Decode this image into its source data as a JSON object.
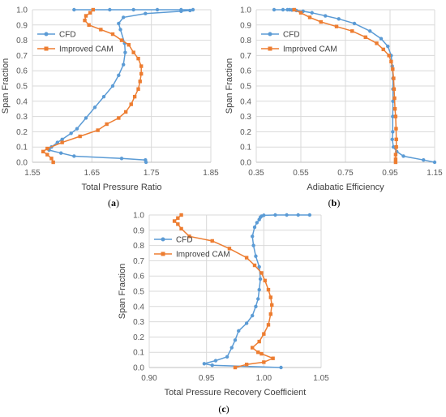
{
  "chart_data": [
    {
      "id": "a",
      "type": "line",
      "panel_label": "a",
      "xlabel": "Total Pressure Ratio",
      "ylabel": "Span Fraction",
      "xlim": [
        1.55,
        1.85
      ],
      "ylim": [
        0.0,
        1.0
      ],
      "x_ticks": [
        "1.55",
        "1.65",
        "1.75",
        "1.85"
      ],
      "y_ticks": [
        "0.0",
        "0.1",
        "0.2",
        "0.3",
        "0.4",
        "0.5",
        "0.6",
        "0.7",
        "0.8",
        "0.9",
        "1.0"
      ],
      "legend_position": "left",
      "grid": true,
      "series": [
        {
          "name": "CFD",
          "color": "#5b9bd5",
          "marker": "circle",
          "points": [
            [
              1.741,
              0.0
            ],
            [
              1.74,
              0.015
            ],
            [
              1.7,
              0.025
            ],
            [
              1.62,
              0.04
            ],
            [
              1.598,
              0.06
            ],
            [
              1.578,
              0.08
            ],
            [
              1.582,
              0.1
            ],
            [
              1.592,
              0.13
            ],
            [
              1.6,
              0.15
            ],
            [
              1.615,
              0.19
            ],
            [
              1.625,
              0.22
            ],
            [
              1.64,
              0.29
            ],
            [
              1.655,
              0.36
            ],
            [
              1.67,
              0.43
            ],
            [
              1.685,
              0.5
            ],
            [
              1.695,
              0.57
            ],
            [
              1.703,
              0.64
            ],
            [
              1.706,
              0.72
            ],
            [
              1.705,
              0.78
            ],
            [
              1.698,
              0.87
            ],
            [
              1.695,
              0.91
            ],
            [
              1.703,
              0.95
            ],
            [
              1.74,
              0.975
            ],
            [
              1.8,
              0.99
            ],
            [
              1.815,
              0.995
            ],
            [
              1.82,
              1.0
            ],
            [
              1.8,
              1.0
            ],
            [
              1.76,
              1.0
            ],
            [
              1.72,
              1.0
            ],
            [
              1.68,
              1.0
            ],
            [
              1.62,
              1.0
            ]
          ]
        },
        {
          "name": "Improved CAM",
          "color": "#ed7d31",
          "marker": "square",
          "points": [
            [
              1.585,
              0.0
            ],
            [
              1.582,
              0.025
            ],
            [
              1.575,
              0.05
            ],
            [
              1.568,
              0.07
            ],
            [
              1.575,
              0.09
            ],
            [
              1.6,
              0.13
            ],
            [
              1.63,
              0.17
            ],
            [
              1.66,
              0.21
            ],
            [
              1.675,
              0.25
            ],
            [
              1.695,
              0.29
            ],
            [
              1.707,
              0.33
            ],
            [
              1.716,
              0.38
            ],
            [
              1.722,
              0.43
            ],
            [
              1.728,
              0.48
            ],
            [
              1.731,
              0.53
            ],
            [
              1.733,
              0.58
            ],
            [
              1.733,
              0.63
            ],
            [
              1.728,
              0.68
            ],
            [
              1.72,
              0.72
            ],
            [
              1.712,
              0.77
            ],
            [
              1.7,
              0.8
            ],
            [
              1.685,
              0.84
            ],
            [
              1.665,
              0.87
            ],
            [
              1.645,
              0.9
            ],
            [
              1.638,
              0.93
            ],
            [
              1.64,
              0.96
            ],
            [
              1.647,
              0.98
            ],
            [
              1.652,
              1.0
            ]
          ]
        }
      ]
    },
    {
      "id": "b",
      "type": "line",
      "panel_label": "b",
      "xlabel": "Adiabatic Efficiency",
      "ylabel": "Span Fraction",
      "xlim": [
        0.35,
        1.15
      ],
      "ylim": [
        0.0,
        1.0
      ],
      "x_ticks": [
        "0.35",
        "0.55",
        "0.75",
        "0.95",
        "1.15"
      ],
      "y_ticks": [
        "0.0",
        "0.1",
        "0.2",
        "0.3",
        "0.4",
        "0.5",
        "0.6",
        "0.7",
        "0.8",
        "0.9",
        "1.0"
      ],
      "legend_position": "left",
      "grid": true,
      "series": [
        {
          "name": "CFD",
          "color": "#5b9bd5",
          "marker": "circle",
          "points": [
            [
              0.43,
              1.0
            ],
            [
              0.47,
              1.0
            ],
            [
              0.49,
              1.0
            ],
            [
              0.5,
              1.0
            ],
            [
              0.51,
              0.998
            ],
            [
              0.53,
              0.995
            ],
            [
              0.56,
              0.99
            ],
            [
              0.6,
              0.98
            ],
            [
              0.66,
              0.96
            ],
            [
              0.72,
              0.94
            ],
            [
              0.79,
              0.91
            ],
            [
              0.86,
              0.86
            ],
            [
              0.91,
              0.81
            ],
            [
              0.94,
              0.76
            ],
            [
              0.955,
              0.7
            ],
            [
              0.96,
              0.63
            ],
            [
              0.963,
              0.55
            ],
            [
              0.963,
              0.48
            ],
            [
              0.963,
              0.4
            ],
            [
              0.962,
              0.3
            ],
            [
              0.962,
              0.2
            ],
            [
              0.96,
              0.15
            ],
            [
              0.965,
              0.1
            ],
            [
              0.98,
              0.07
            ],
            [
              1.01,
              0.04
            ],
            [
              1.1,
              0.015
            ],
            [
              1.15,
              0.0
            ]
          ]
        },
        {
          "name": "Improved CAM",
          "color": "#ed7d31",
          "marker": "square",
          "points": [
            [
              0.52,
              1.0
            ],
            [
              0.55,
              0.98
            ],
            [
              0.59,
              0.95
            ],
            [
              0.64,
              0.92
            ],
            [
              0.71,
              0.89
            ],
            [
              0.78,
              0.86
            ],
            [
              0.84,
              0.82
            ],
            [
              0.89,
              0.78
            ],
            [
              0.92,
              0.74
            ],
            [
              0.945,
              0.7
            ],
            [
              0.955,
              0.66
            ],
            [
              0.962,
              0.61
            ],
            [
              0.966,
              0.55
            ],
            [
              0.968,
              0.48
            ],
            [
              0.97,
              0.42
            ],
            [
              0.972,
              0.35
            ],
            [
              0.975,
              0.3
            ],
            [
              0.977,
              0.22
            ],
            [
              0.978,
              0.15
            ],
            [
              0.978,
              0.1
            ],
            [
              0.975,
              0.05
            ],
            [
              0.975,
              0.02
            ],
            [
              0.975,
              0.0
            ]
          ]
        }
      ]
    },
    {
      "id": "c",
      "type": "line",
      "panel_label": "c",
      "xlabel": "Total Pressure Recovery Coefficient",
      "ylabel": "Span Fraction",
      "xlim": [
        0.9,
        1.05
      ],
      "ylim": [
        0.0,
        1.0
      ],
      "x_ticks": [
        "0.90",
        "0.95",
        "1.00",
        "1.05"
      ],
      "y_ticks": [
        "0.0",
        "0.1",
        "0.2",
        "0.3",
        "0.4",
        "0.5",
        "0.6",
        "0.7",
        "0.8",
        "0.9",
        "1.0"
      ],
      "legend_position": "left",
      "grid": true,
      "series": [
        {
          "name": "CFD",
          "color": "#5b9bd5",
          "marker": "circle",
          "points": [
            [
              1.015,
              0.0
            ],
            [
              0.955,
              0.015
            ],
            [
              0.948,
              0.025
            ],
            [
              0.958,
              0.045
            ],
            [
              0.968,
              0.07
            ],
            [
              0.972,
              0.13
            ],
            [
              0.975,
              0.18
            ],
            [
              0.978,
              0.24
            ],
            [
              0.985,
              0.29
            ],
            [
              0.99,
              0.34
            ],
            [
              0.993,
              0.4
            ],
            [
              0.995,
              0.45
            ],
            [
              0.996,
              0.51
            ],
            [
              0.997,
              0.58
            ],
            [
              0.996,
              0.66
            ],
            [
              0.993,
              0.73
            ],
            [
              0.991,
              0.8
            ],
            [
              0.99,
              0.86
            ],
            [
              0.992,
              0.92
            ],
            [
              0.994,
              0.95
            ],
            [
              0.996,
              0.97
            ],
            [
              0.997,
              0.985
            ],
            [
              0.998,
              0.992
            ],
            [
              1.0,
              0.998
            ],
            [
              1.01,
              1.0
            ],
            [
              1.02,
              1.0
            ],
            [
              1.03,
              1.0
            ],
            [
              1.04,
              1.0
            ]
          ]
        },
        {
          "name": "Improved CAM",
          "color": "#ed7d31",
          "marker": "square",
          "points": [
            [
              0.975,
              0.0
            ],
            [
              0.985,
              0.02
            ],
            [
              1.0,
              0.035
            ],
            [
              1.008,
              0.06
            ],
            [
              0.998,
              0.09
            ],
            [
              0.995,
              0.1
            ],
            [
              0.99,
              0.13
            ],
            [
              0.996,
              0.17
            ],
            [
              1.0,
              0.22
            ],
            [
              1.004,
              0.28
            ],
            [
              1.006,
              0.35
            ],
            [
              1.007,
              0.41
            ],
            [
              1.006,
              0.46
            ],
            [
              1.004,
              0.51
            ],
            [
              1.001,
              0.57
            ],
            [
              0.998,
              0.62
            ],
            [
              0.992,
              0.67
            ],
            [
              0.985,
              0.72
            ],
            [
              0.97,
              0.78
            ],
            [
              0.955,
              0.83
            ],
            [
              0.935,
              0.86
            ],
            [
              0.928,
              0.91
            ],
            [
              0.925,
              0.94
            ],
            [
              0.922,
              0.96
            ],
            [
              0.925,
              0.98
            ],
            [
              0.928,
              1.0
            ]
          ]
        }
      ]
    }
  ]
}
